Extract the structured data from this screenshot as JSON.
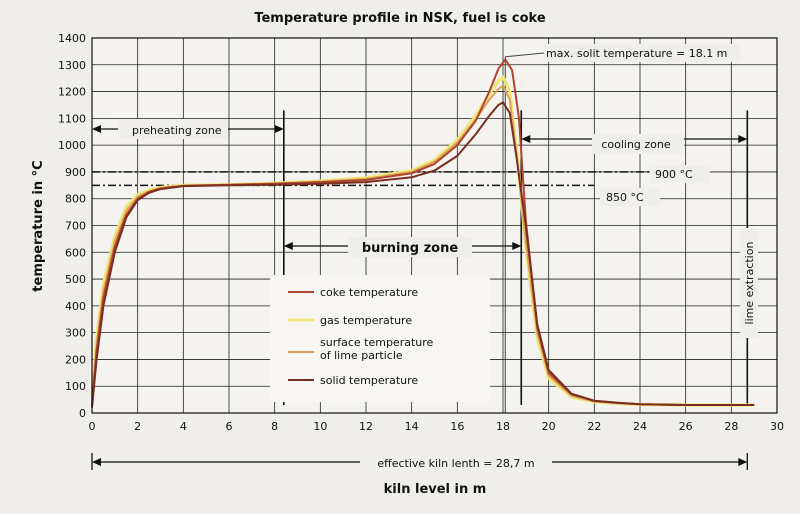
{
  "chart_data": {
    "type": "line",
    "title": "Temperature profile in NSK, fuel is coke",
    "xlabel": "kiln level in m",
    "ylabel": "temperature in °C",
    "xlim": [
      0,
      30
    ],
    "ylim": [
      0,
      1400
    ],
    "xticks": [
      0,
      2,
      4,
      6,
      8,
      10,
      12,
      14,
      16,
      18,
      20,
      22,
      24,
      26,
      28,
      30
    ],
    "yticks": [
      0,
      100,
      200,
      300,
      400,
      500,
      600,
      700,
      800,
      900,
      1000,
      1100,
      1200,
      1300,
      1400
    ],
    "grid": true,
    "legend_position": "lower-center",
    "series": [
      {
        "name": "coke temperature",
        "color": "#b0442c",
        "x": [
          0,
          0.2,
          0.5,
          1,
          1.5,
          2,
          2.5,
          3,
          4,
          6,
          8,
          10,
          12,
          14,
          15,
          16,
          16.8,
          17.4,
          17.8,
          18.1,
          18.4,
          18.7,
          19,
          19.5,
          20,
          21,
          22,
          23,
          24,
          26,
          28,
          29
        ],
        "y": [
          30,
          230,
          430,
          620,
          740,
          800,
          825,
          838,
          848,
          852,
          856,
          862,
          870,
          895,
          930,
          1000,
          1090,
          1200,
          1285,
          1320,
          1280,
          1100,
          720,
          320,
          150,
          70,
          45,
          38,
          33,
          30,
          30,
          30
        ]
      },
      {
        "name": "gas temperature",
        "color": "#efe67a",
        "x": [
          0,
          0.2,
          0.5,
          1,
          1.5,
          2,
          2.5,
          3,
          4,
          6,
          8,
          10,
          12,
          14,
          15,
          16,
          16.8,
          17.4,
          17.8,
          18.0,
          18.3,
          18.6,
          19,
          19.5,
          20,
          21,
          22,
          23,
          24,
          26,
          28,
          29
        ],
        "y": [
          60,
          280,
          480,
          660,
          770,
          815,
          832,
          842,
          850,
          852,
          858,
          866,
          878,
          905,
          945,
          1020,
          1110,
          1190,
          1240,
          1255,
          1200,
          980,
          620,
          280,
          130,
          60,
          42,
          36,
          32,
          30,
          30,
          30
        ]
      },
      {
        "name": "surface temperature of lime particle",
        "color": "#dba15a",
        "x": [
          0,
          0.2,
          0.5,
          1,
          1.5,
          2,
          2.5,
          3,
          4,
          6,
          8,
          10,
          12,
          14,
          15,
          16,
          16.8,
          17.4,
          17.8,
          18.0,
          18.3,
          18.6,
          19,
          19.5,
          20,
          21,
          22,
          23,
          24,
          26,
          28,
          29
        ],
        "y": [
          45,
          255,
          455,
          640,
          755,
          808,
          828,
          840,
          849,
          852,
          857,
          864,
          874,
          900,
          938,
          1010,
          1095,
          1170,
          1210,
          1222,
          1170,
          960,
          640,
          300,
          140,
          65,
          43,
          37,
          32,
          30,
          30,
          30
        ]
      },
      {
        "name": "solid temperature",
        "color": "#7a2e22",
        "x": [
          0,
          0.2,
          0.5,
          1,
          1.5,
          2,
          2.5,
          3,
          4,
          6,
          8,
          10,
          12,
          14,
          15,
          16,
          16.8,
          17.4,
          17.8,
          18.0,
          18.3,
          18.6,
          19,
          19.5,
          20,
          21,
          22,
          23,
          24,
          26,
          28,
          29
        ],
        "y": [
          20,
          200,
          400,
          600,
          730,
          795,
          822,
          836,
          847,
          850,
          852,
          856,
          862,
          880,
          905,
          960,
          1040,
          1110,
          1150,
          1160,
          1120,
          950,
          700,
          330,
          160,
          72,
          46,
          38,
          33,
          30,
          30,
          30
        ]
      }
    ],
    "reference_lines": [
      {
        "y": 900,
        "label": "900 °C",
        "x_from": 0,
        "x_to": 26
      },
      {
        "y": 850,
        "label": "850 °C",
        "x_from": 0,
        "x_to": 22
      }
    ],
    "zone_markers": [
      8.4,
      18.8,
      28.7
    ],
    "max_line_x": 18.1,
    "annotations": {
      "max_solid": "max. solit temperature = 18.1 m",
      "preheating": "preheating zone",
      "burning": "burning zone",
      "cooling": "cooling zone",
      "lime_extraction": "lime extraction",
      "effective_length": "effective kiln lenth = 28,7 m"
    },
    "zones": {
      "preheating": [
        0,
        8.4
      ],
      "burning": [
        8.4,
        18.8
      ],
      "cooling": [
        18.8,
        28.7
      ],
      "effective_length": [
        0,
        28.7
      ]
    }
  }
}
